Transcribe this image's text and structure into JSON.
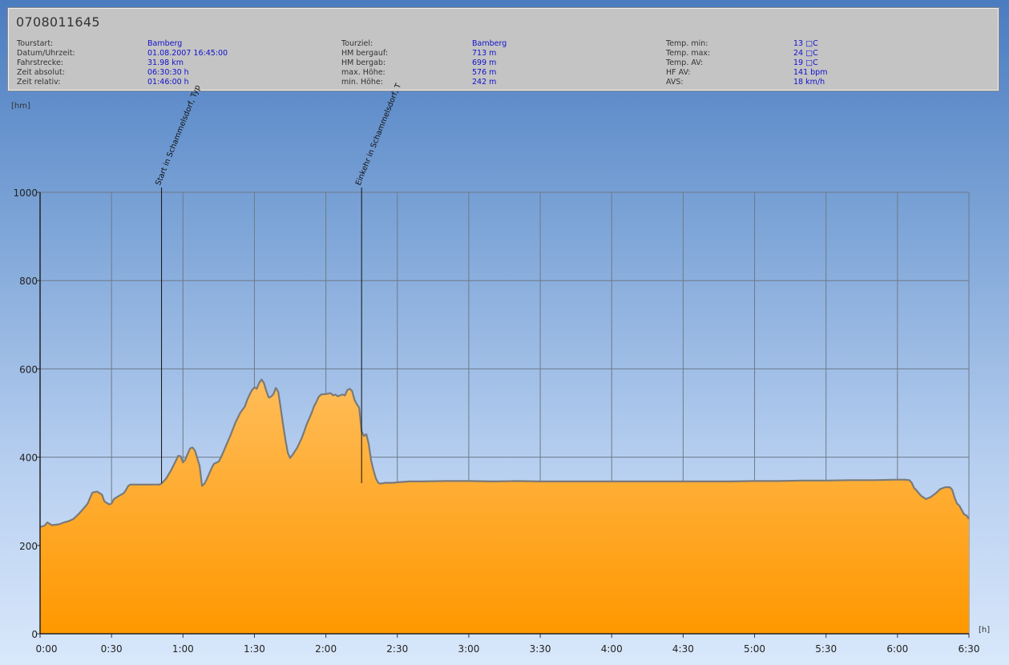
{
  "header": {
    "title": "0708011645",
    "columns": [
      [
        {
          "label": "Tourstart:",
          "value": "Bamberg"
        },
        {
          "label": "Datum/Uhrzeit:",
          "value": "01.08.2007 16:45:00"
        },
        {
          "label": "Fahrstrecke:",
          "value": "31.98 km"
        },
        {
          "label": "Zeit absolut:",
          "value": "06:30:30 h"
        },
        {
          "label": "Zeit relativ:",
          "value": "01:46:00 h"
        }
      ],
      [
        {
          "label": "Tourziel:",
          "value": "Bamberg"
        },
        {
          "label": "HM bergauf:",
          "value": "713 m"
        },
        {
          "label": "HM bergab:",
          "value": "699 m"
        },
        {
          "label": "max. Höhe:",
          "value": "576 m"
        },
        {
          "label": "min. Höhe:",
          "value": "242 m"
        }
      ],
      [
        {
          "label": "Temp. min:",
          "value": "13 □C"
        },
        {
          "label": "Temp. max:",
          "value": "24 □C"
        },
        {
          "label": "Temp. AV:",
          "value": "19 □C"
        },
        {
          "label": "HF AV:",
          "value": "141 bpm"
        },
        {
          "label": "AVS:",
          "value": "18 km/h"
        }
      ]
    ]
  },
  "chart_data": {
    "type": "area",
    "ylabel": "[hm]",
    "xlabel": "[h]",
    "ylim": [
      0,
      1000
    ],
    "xlim": [
      0,
      390
    ],
    "x_ticks": [
      {
        "v": 0,
        "label": "0:00"
      },
      {
        "v": 30,
        "label": "0:30"
      },
      {
        "v": 60,
        "label": "1:00"
      },
      {
        "v": 90,
        "label": "1:30"
      },
      {
        "v": 120,
        "label": "2:00"
      },
      {
        "v": 150,
        "label": "2:30"
      },
      {
        "v": 180,
        "label": "3:00"
      },
      {
        "v": 210,
        "label": "3:30"
      },
      {
        "v": 240,
        "label": "4:00"
      },
      {
        "v": 270,
        "label": "4:30"
      },
      {
        "v": 300,
        "label": "5:00"
      },
      {
        "v": 330,
        "label": "5:30"
      },
      {
        "v": 360,
        "label": "6:00"
      },
      {
        "v": 390,
        "label": "6:30"
      }
    ],
    "y_ticks": [
      {
        "v": 0,
        "label": "0"
      },
      {
        "v": 200,
        "label": "200"
      },
      {
        "v": 400,
        "label": "400"
      },
      {
        "v": 600,
        "label": "600"
      },
      {
        "v": 800,
        "label": "800"
      },
      {
        "v": 1000,
        "label": "1000"
      }
    ],
    "grid": true,
    "fill_top_color": "#ffd79a",
    "fill_bottom_color": "#ff9800",
    "line_color": "#7a7a7a",
    "markers": [
      {
        "x": 51,
        "label": "Start in Schammelsdorf, Typ"
      },
      {
        "x": 135,
        "label": "Einkehr in Schammelsdorf, T"
      }
    ],
    "series": [
      {
        "points": [
          [
            0,
            242
          ],
          [
            2,
            245
          ],
          [
            3,
            252
          ],
          [
            5,
            246
          ],
          [
            8,
            248
          ],
          [
            10,
            252
          ],
          [
            12,
            255
          ],
          [
            14,
            260
          ],
          [
            16,
            270
          ],
          [
            18,
            282
          ],
          [
            20,
            295
          ],
          [
            21,
            308
          ],
          [
            22,
            320
          ],
          [
            24,
            322
          ],
          [
            26,
            315
          ],
          [
            27,
            300
          ],
          [
            29,
            293
          ],
          [
            30,
            295
          ],
          [
            31,
            305
          ],
          [
            33,
            312
          ],
          [
            35,
            318
          ],
          [
            36,
            325
          ],
          [
            37,
            335
          ],
          [
            38,
            338
          ],
          [
            40,
            338
          ],
          [
            45,
            338
          ],
          [
            50,
            338
          ],
          [
            51,
            340
          ],
          [
            53,
            352
          ],
          [
            55,
            370
          ],
          [
            57,
            392
          ],
          [
            58,
            403
          ],
          [
            59,
            402
          ],
          [
            60,
            388
          ],
          [
            61,
            395
          ],
          [
            62,
            408
          ],
          [
            63,
            420
          ],
          [
            64,
            422
          ],
          [
            65,
            415
          ],
          [
            66,
            398
          ],
          [
            67,
            380
          ],
          [
            68,
            335
          ],
          [
            69,
            340
          ],
          [
            70,
            350
          ],
          [
            72,
            375
          ],
          [
            73,
            385
          ],
          [
            75,
            390
          ],
          [
            76,
            400
          ],
          [
            78,
            425
          ],
          [
            80,
            450
          ],
          [
            82,
            478
          ],
          [
            84,
            500
          ],
          [
            86,
            515
          ],
          [
            87,
            530
          ],
          [
            88,
            542
          ],
          [
            89,
            552
          ],
          [
            90,
            558
          ],
          [
            91,
            555
          ],
          [
            92,
            568
          ],
          [
            93,
            576
          ],
          [
            94,
            568
          ],
          [
            95,
            550
          ],
          [
            96,
            535
          ],
          [
            97,
            537
          ],
          [
            98,
            543
          ],
          [
            99,
            557
          ],
          [
            100,
            548
          ],
          [
            101,
            512
          ],
          [
            102,
            475
          ],
          [
            103,
            440
          ],
          [
            104,
            410
          ],
          [
            105,
            398
          ],
          [
            106,
            405
          ],
          [
            108,
            422
          ],
          [
            110,
            445
          ],
          [
            111,
            460
          ],
          [
            112,
            475
          ],
          [
            114,
            500
          ],
          [
            115,
            515
          ],
          [
            116,
            525
          ],
          [
            117,
            537
          ],
          [
            118,
            542
          ],
          [
            120,
            543
          ],
          [
            122,
            545
          ],
          [
            123,
            540
          ],
          [
            124,
            542
          ],
          [
            125,
            538
          ],
          [
            126,
            540
          ],
          [
            127,
            542
          ],
          [
            128,
            540
          ],
          [
            129,
            552
          ],
          [
            130,
            555
          ],
          [
            131,
            550
          ],
          [
            132,
            530
          ],
          [
            133,
            520
          ],
          [
            134,
            512
          ],
          [
            135,
            458
          ],
          [
            136,
            448
          ],
          [
            137,
            452
          ],
          [
            138,
            430
          ],
          [
            139,
            392
          ],
          [
            140,
            370
          ],
          [
            141,
            352
          ],
          [
            142,
            342
          ],
          [
            143,
            340
          ],
          [
            145,
            342
          ],
          [
            148,
            342
          ],
          [
            150,
            343
          ],
          [
            155,
            345
          ],
          [
            160,
            345
          ],
          [
            170,
            346
          ],
          [
            180,
            346
          ],
          [
            190,
            345
          ],
          [
            200,
            346
          ],
          [
            210,
            345
          ],
          [
            220,
            345
          ],
          [
            230,
            345
          ],
          [
            240,
            345
          ],
          [
            250,
            345
          ],
          [
            260,
            345
          ],
          [
            270,
            345
          ],
          [
            280,
            345
          ],
          [
            290,
            345
          ],
          [
            300,
            346
          ],
          [
            310,
            346
          ],
          [
            320,
            347
          ],
          [
            330,
            347
          ],
          [
            340,
            348
          ],
          [
            350,
            348
          ],
          [
            360,
            349
          ],
          [
            363,
            349
          ],
          [
            365,
            348
          ],
          [
            366,
            342
          ],
          [
            367,
            330
          ],
          [
            368,
            325
          ],
          [
            369,
            318
          ],
          [
            370,
            312
          ],
          [
            372,
            305
          ],
          [
            374,
            310
          ],
          [
            376,
            318
          ],
          [
            378,
            328
          ],
          [
            380,
            332
          ],
          [
            382,
            332
          ],
          [
            383,
            326
          ],
          [
            384,
            308
          ],
          [
            385,
            295
          ],
          [
            386,
            290
          ],
          [
            387,
            280
          ],
          [
            388,
            270
          ],
          [
            389,
            268
          ],
          [
            390,
            260
          ]
        ]
      }
    ]
  }
}
